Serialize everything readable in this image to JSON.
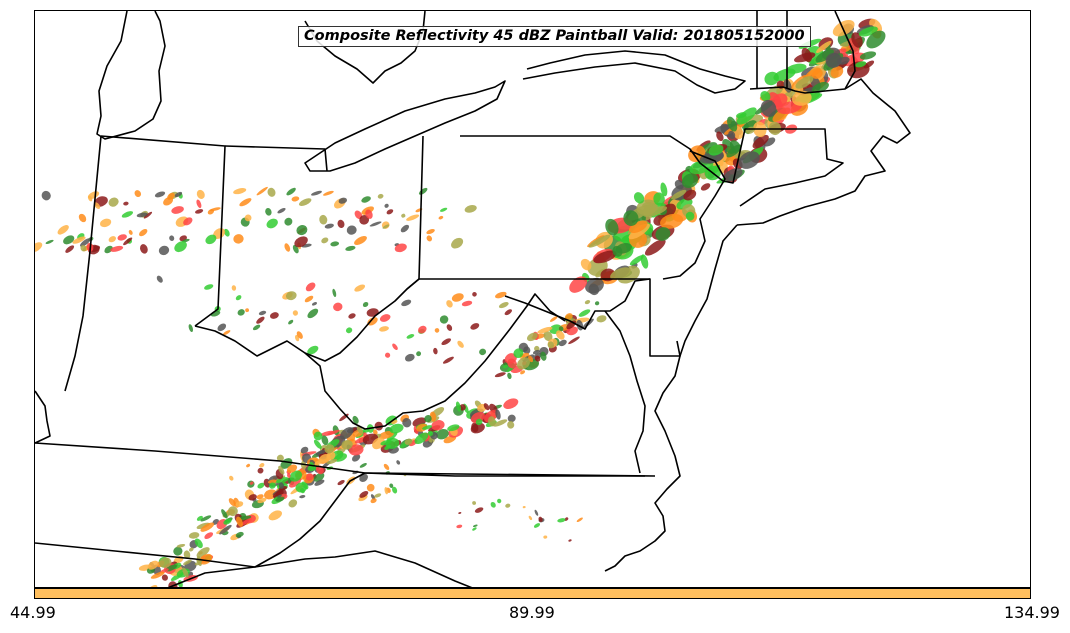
{
  "title": "Composite Reflectivity 45 dBZ Paintball Valid: 201805152000",
  "colorbar": {
    "color": "#ffbf5e",
    "tick_labels": [
      "44.99",
      "89.99",
      "134.99"
    ]
  },
  "paintball_colors": [
    "#ff4545",
    "#ff8c1a",
    "#a8a84a",
    "#8c1a1a",
    "#2f8c2f",
    "#33cc33",
    "#555555",
    "#ffb347"
  ],
  "map": {
    "region": "Eastern United States",
    "features": [
      "state-borders",
      "coastlines",
      "great-lakes"
    ]
  }
}
